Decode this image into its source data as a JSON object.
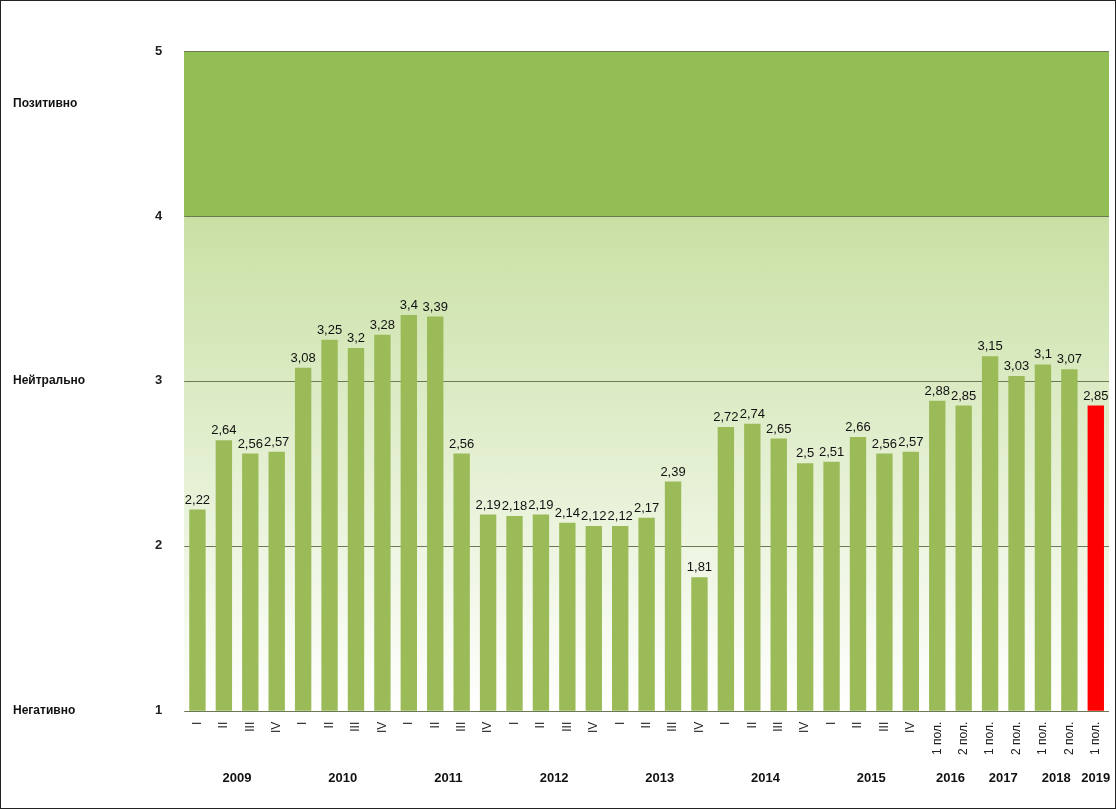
{
  "chart_data": {
    "type": "bar",
    "categories": [
      "I",
      "II",
      "III",
      "IV",
      "I",
      "II",
      "III",
      "IV",
      "I",
      "II",
      "III",
      "IV",
      "I",
      "II",
      "III",
      "IV",
      "I",
      "II",
      "III",
      "IV",
      "I",
      "II",
      "III",
      "IV",
      "I",
      "II",
      "III",
      "IV",
      "1 пол.",
      "2 пол.",
      "1 пол.",
      "2 пол.",
      "1 пол.",
      "2 пол.",
      "1 пол."
    ],
    "values": [
      2.22,
      2.64,
      2.56,
      2.57,
      3.08,
      3.25,
      3.2,
      3.28,
      3.4,
      3.39,
      2.56,
      2.19,
      2.18,
      2.19,
      2.14,
      2.12,
      2.12,
      2.17,
      2.39,
      1.81,
      2.72,
      2.74,
      2.65,
      2.5,
      2.51,
      2.66,
      2.56,
      2.57,
      2.88,
      2.85,
      3.15,
      3.03,
      3.1,
      3.07,
      2.85
    ],
    "colors": [
      "#9bbb59",
      "#9bbb59",
      "#9bbb59",
      "#9bbb59",
      "#9bbb59",
      "#9bbb59",
      "#9bbb59",
      "#9bbb59",
      "#9bbb59",
      "#9bbb59",
      "#9bbb59",
      "#9bbb59",
      "#9bbb59",
      "#9bbb59",
      "#9bbb59",
      "#9bbb59",
      "#9bbb59",
      "#9bbb59",
      "#9bbb59",
      "#9bbb59",
      "#9bbb59",
      "#9bbb59",
      "#9bbb59",
      "#9bbb59",
      "#9bbb59",
      "#9bbb59",
      "#9bbb59",
      "#9bbb59",
      "#9bbb59",
      "#9bbb59",
      "#9bbb59",
      "#9bbb59",
      "#9bbb59",
      "#9bbb59",
      "#ff0000"
    ],
    "value_labels": [
      "2,22",
      "2,64",
      "2,56",
      "2,57",
      "3,08",
      "3,25",
      "3,2",
      "3,28",
      "3,4",
      "3,39",
      "2,56",
      "2,19",
      "2,18",
      "2,19",
      "2,14",
      "2,12",
      "2,12",
      "2,17",
      "2,39",
      "1,81",
      "2,72",
      "2,74",
      "2,65",
      "2,5",
      "2,51",
      "2,66",
      "2,56",
      "2,57",
      "2,88",
      "2,85",
      "3,15",
      "3,03",
      "3,1",
      "3,07",
      "2,85"
    ],
    "ylim": [
      1,
      5
    ],
    "yticks": [
      1,
      2,
      3,
      4,
      5
    ],
    "grid": "y",
    "legend": false,
    "annotations": [
      "Позитивно",
      "Нейтрально",
      "Негативно",
      "2009",
      "2010",
      "2011",
      "2012",
      "2013",
      "2014",
      "2015",
      "2016",
      "2017",
      "2018",
      "2019"
    ]
  }
}
